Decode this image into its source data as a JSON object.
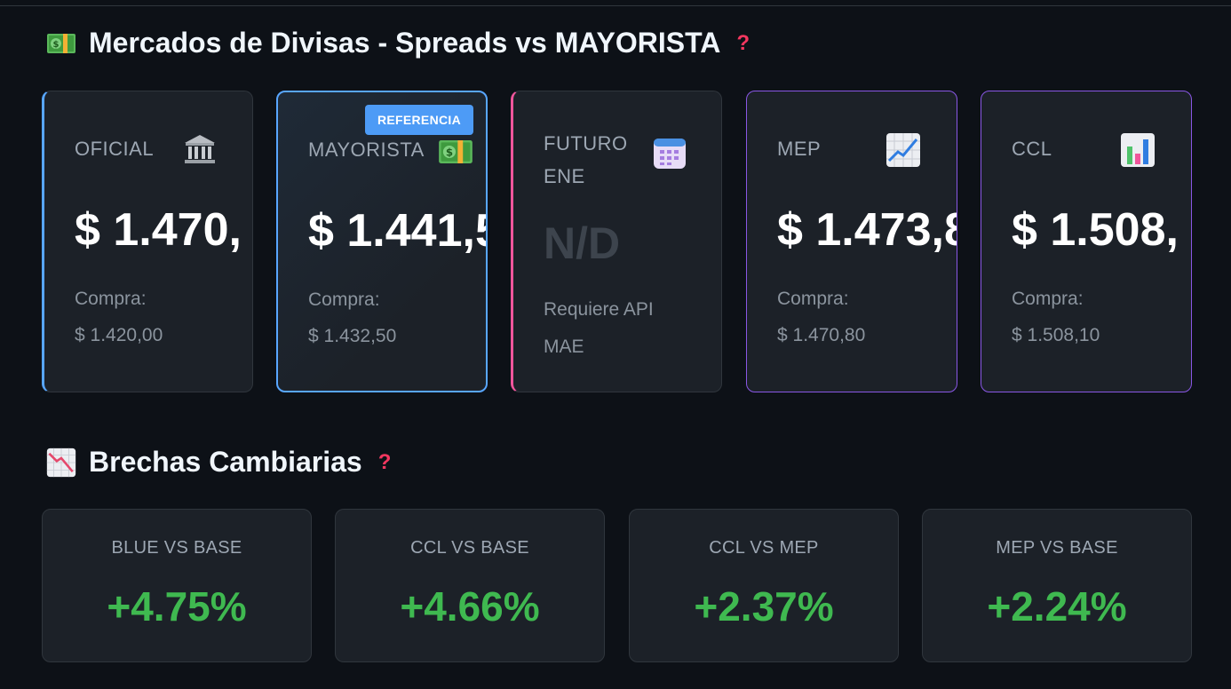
{
  "markets": {
    "title": "Mercados de Divisas - Spreads vs MAYORISTA",
    "help": "?",
    "cards": [
      {
        "label": "OFICIAL",
        "icon": "bank-icon",
        "price": "$ 1.470,",
        "sub1": "Compra:",
        "sub2": "$ 1.420,00",
        "accent": "#58a6ff"
      },
      {
        "label": "MAYORISTA",
        "icon": "money-icon",
        "price": "$ 1.441,5",
        "sub1": "Compra:",
        "sub2": "$ 1.432,50",
        "badge": "REFERENCIA",
        "accent": "#58a6ff"
      },
      {
        "label": "FUTURO ENE",
        "icon": "calendar-icon",
        "price": "N/D",
        "sub1": "Requiere API",
        "sub2": "MAE",
        "accent": "#f0569c"
      },
      {
        "label": "MEP",
        "icon": "chart-up-icon",
        "price": "$ 1.473,8",
        "sub1": "Compra:",
        "sub2": "$ 1.470,80",
        "accent": "#8957e5"
      },
      {
        "label": "CCL",
        "icon": "bar-chart-icon",
        "price": "$ 1.508,",
        "sub1": "Compra:",
        "sub2": "$ 1.508,10",
        "accent": "#8957e5"
      }
    ]
  },
  "gaps": {
    "title": "Brechas Cambiarias",
    "help": "?",
    "cards": [
      {
        "label": "BLUE VS BASE",
        "value": "+4.75%"
      },
      {
        "label": "CCL VS BASE",
        "value": "+4.66%"
      },
      {
        "label": "CCL VS MEP",
        "value": "+2.37%"
      },
      {
        "label": "MEP VS BASE",
        "value": "+2.24%"
      }
    ],
    "positive_color": "#3fb950"
  }
}
